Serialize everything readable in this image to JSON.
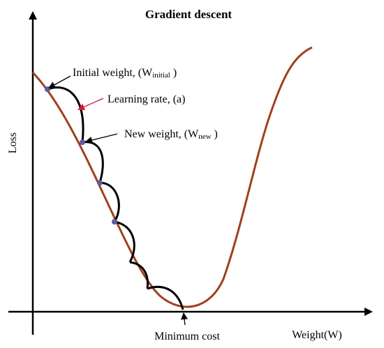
{
  "title": "Gradient descent",
  "axes": {
    "x_label": "Weight(W)",
    "y_label": "Loss"
  },
  "annotations": {
    "initial_weight": {
      "text": "Initial weight, (W",
      "subscript": "initial",
      "close": " )"
    },
    "learning_rate": "Learning rate, (a)",
    "new_weight": {
      "text": "New weight,  (W",
      "subscript": "new",
      "close": " )"
    },
    "minimum_cost": "Minimum cost"
  },
  "colors": {
    "curve": "#a0401e",
    "steps": "#000000",
    "points": "#5c5c9e",
    "axes": "#000000",
    "rate_arrow": "#d01a3a"
  }
}
